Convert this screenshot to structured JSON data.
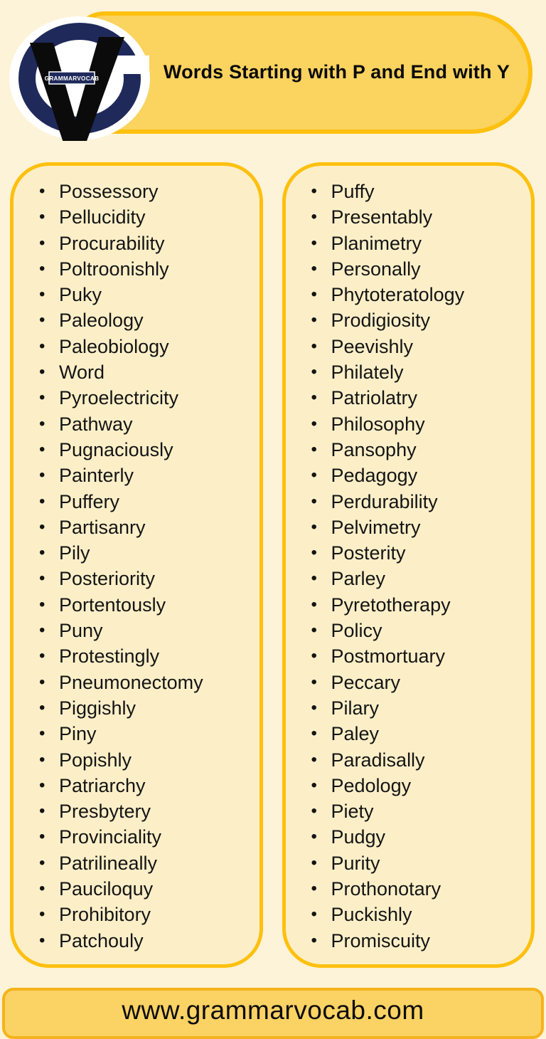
{
  "page": {
    "title": "Words Starting with P and End with Y",
    "footer_url": "www.grammarvocab.com",
    "logo": {
      "badge_text": "GRAMMARVOCAB",
      "letter": "V"
    },
    "colors": {
      "page_bg": "#FDF3D8",
      "panel_bg": "#FCEFC8",
      "band_fill": "#FBD35F",
      "gold_border": "#FEC00F",
      "footer_fill": "#FBD264",
      "footer_border": "#F5B31B",
      "logo_navy": "#1F2A5B",
      "text": "#111111"
    }
  },
  "words": {
    "left": [
      "Possessory",
      "Pellucidity",
      "Procurability",
      "Poltroonishly",
      "Puky",
      "Paleology",
      "Paleobiology",
      "Word",
      "Pyroelectricity",
      "Pathway",
      "Pugnaciously",
      "Painterly",
      "Puffery",
      "Partisanry",
      "Pily",
      "Posteriority",
      "Portentously",
      "Puny",
      "Protestingly",
      "Pneumonectomy",
      "Piggishly",
      "Piny",
      "Popishly",
      "Patriarchy",
      "Presbytery",
      "Provinciality",
      "Patrilineally",
      "Pauciloquy",
      "Prohibitory",
      "Patchouly"
    ],
    "right": [
      "Puffy",
      "Presentably",
      "Planimetry",
      "Personally",
      "Phytoteratology",
      "Prodigiosity",
      "Peevishly",
      "Philately",
      "Patriolatry",
      "Philosophy",
      "Pansophy",
      "Pedagogy",
      "Perdurability",
      "Pelvimetry",
      "Posterity",
      "Parley",
      "Pyretotherapy",
      "Policy",
      "Postmortuary",
      "Peccary",
      "Pilary",
      "Paley",
      "Paradisally",
      "Pedology",
      "Piety",
      "Pudgy",
      "Purity",
      "Prothonotary",
      "Puckishly",
      "Promiscuity"
    ]
  }
}
